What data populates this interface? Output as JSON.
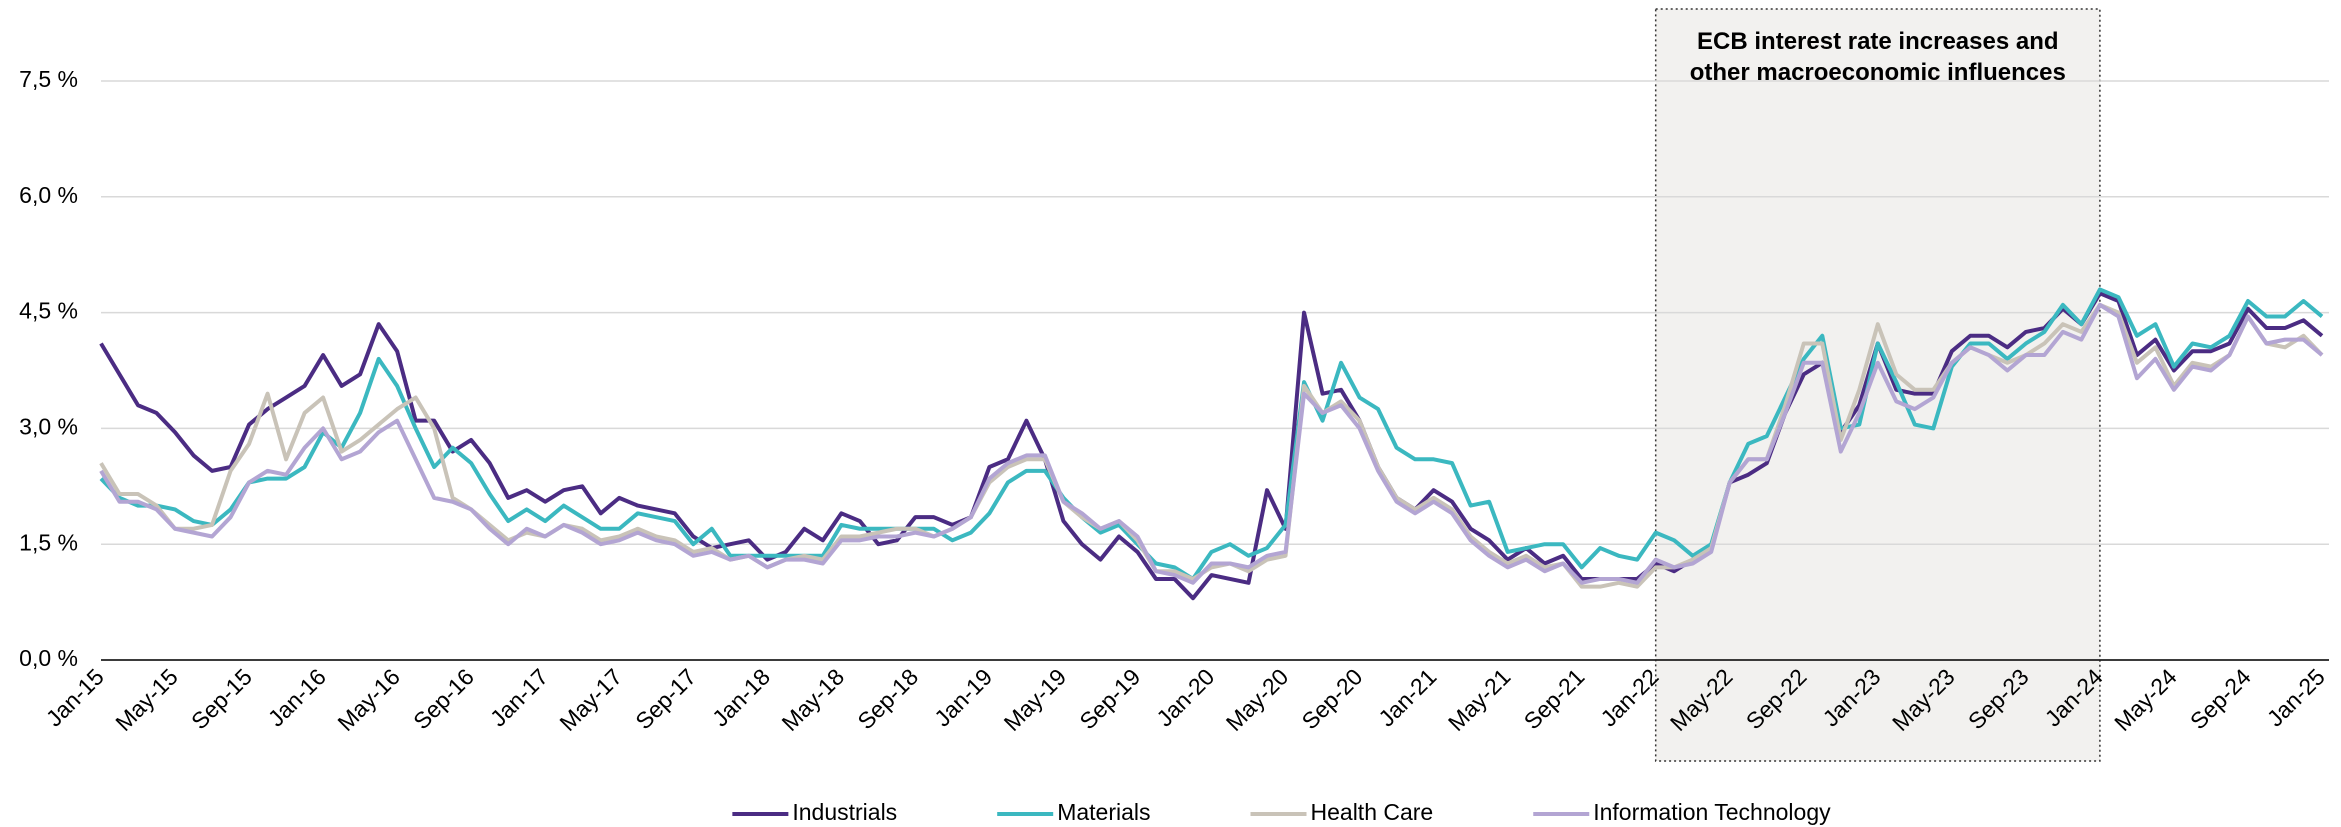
{
  "chart_data": {
    "type": "line",
    "categories": [
      "Jan-15",
      null,
      null,
      null,
      "May-15",
      null,
      null,
      null,
      "Sep-15",
      null,
      null,
      null,
      "Jan-16",
      null,
      null,
      null,
      "May-16",
      null,
      null,
      null,
      "Sep-16",
      null,
      null,
      null,
      "Jan-17",
      null,
      null,
      null,
      "May-17",
      null,
      null,
      null,
      "Sep-17",
      null,
      null,
      null,
      "Jan-18",
      null,
      null,
      null,
      "May-18",
      null,
      null,
      null,
      "Sep-18",
      null,
      null,
      null,
      "Jan-19",
      null,
      null,
      null,
      "May-19",
      null,
      null,
      null,
      "Sep-19",
      null,
      null,
      null,
      "Jan-20",
      null,
      null,
      null,
      "May-20",
      null,
      null,
      null,
      "Sep-20",
      null,
      null,
      null,
      "Jan-21",
      null,
      null,
      null,
      "May-21",
      null,
      null,
      null,
      "Sep-21",
      null,
      null,
      null,
      "Jan-22",
      null,
      null,
      null,
      "May-22",
      null,
      null,
      null,
      "Sep-22",
      null,
      null,
      null,
      "Jan-23",
      null,
      null,
      null,
      "May-23",
      null,
      null,
      null,
      "Sep-23",
      null,
      null,
      null,
      "Jan-24",
      null,
      null,
      null,
      "May-24",
      null,
      null,
      null,
      "Sep-24",
      null,
      null,
      null,
      "Jan-25"
    ],
    "series": [
      {
        "name": "Industrials",
        "color": "#4b2c83",
        "values": [
          4.1,
          3.7,
          3.3,
          3.2,
          2.95,
          2.65,
          2.45,
          2.5,
          3.05,
          3.25,
          3.4,
          3.55,
          3.95,
          3.55,
          3.7,
          4.35,
          4.0,
          3.1,
          3.1,
          2.7,
          2.85,
          2.55,
          2.1,
          2.2,
          2.05,
          2.2,
          2.25,
          1.9,
          2.1,
          2.0,
          1.95,
          1.9,
          1.6,
          1.45,
          1.5,
          1.55,
          1.3,
          1.4,
          1.7,
          1.55,
          1.9,
          1.8,
          1.5,
          1.55,
          1.85,
          1.85,
          1.75,
          1.85,
          2.5,
          2.6,
          3.1,
          2.6,
          1.8,
          1.5,
          1.3,
          1.6,
          1.4,
          1.05,
          1.05,
          0.8,
          1.1,
          1.05,
          1.0,
          2.2,
          1.7,
          4.5,
          3.45,
          3.5,
          3.1,
          2.5,
          2.1,
          1.95,
          2.2,
          2.05,
          1.7,
          1.55,
          1.3,
          1.45,
          1.25,
          1.35,
          1.05,
          1.05,
          1.05,
          1.05,
          1.25,
          1.15,
          1.3,
          1.45,
          2.3,
          2.4,
          2.55,
          3.2,
          3.7,
          3.85,
          2.95,
          3.3,
          4.1,
          3.5,
          3.45,
          3.45,
          4.0,
          4.2,
          4.2,
          4.05,
          4.25,
          4.3,
          4.55,
          4.35,
          4.75,
          4.65,
          3.95,
          4.15,
          3.75,
          4.0,
          4.0,
          4.1,
          4.55,
          4.3,
          4.3,
          4.4,
          4.2
        ]
      },
      {
        "name": "Materials",
        "color": "#3bb8c0",
        "values": [
          2.35,
          2.1,
          2.0,
          2.0,
          1.95,
          1.8,
          1.75,
          1.95,
          2.3,
          2.35,
          2.35,
          2.5,
          2.95,
          2.75,
          3.2,
          3.9,
          3.55,
          3.0,
          2.5,
          2.75,
          2.55,
          2.15,
          1.8,
          1.95,
          1.8,
          2.0,
          1.85,
          1.7,
          1.7,
          1.9,
          1.85,
          1.8,
          1.5,
          1.7,
          1.35,
          1.35,
          1.35,
          1.35,
          1.35,
          1.35,
          1.75,
          1.7,
          1.7,
          1.7,
          1.7,
          1.7,
          1.55,
          1.65,
          1.9,
          2.3,
          2.45,
          2.45,
          2.1,
          1.85,
          1.65,
          1.75,
          1.5,
          1.25,
          1.2,
          1.05,
          1.4,
          1.5,
          1.35,
          1.45,
          1.75,
          3.6,
          3.1,
          3.85,
          3.4,
          3.25,
          2.75,
          2.6,
          2.6,
          2.55,
          2.0,
          2.05,
          1.4,
          1.45,
          1.5,
          1.5,
          1.2,
          1.45,
          1.35,
          1.3,
          1.65,
          1.55,
          1.35,
          1.5,
          2.3,
          2.8,
          2.9,
          3.4,
          3.9,
          4.2,
          3.0,
          3.05,
          4.1,
          3.6,
          3.05,
          3.0,
          3.8,
          4.1,
          4.1,
          3.9,
          4.1,
          4.25,
          4.6,
          4.35,
          4.8,
          4.7,
          4.2,
          4.35,
          3.8,
          4.1,
          4.05,
          4.2,
          4.65,
          4.45,
          4.45,
          4.65,
          4.45
        ]
      },
      {
        "name": "Health Care",
        "color": "#c9c3b8",
        "values": [
          2.55,
          2.15,
          2.15,
          2.0,
          1.7,
          1.7,
          1.75,
          2.45,
          2.8,
          3.45,
          2.6,
          3.2,
          3.4,
          2.7,
          2.85,
          3.05,
          3.25,
          3.4,
          3.0,
          2.1,
          1.95,
          1.75,
          1.55,
          1.65,
          1.6,
          1.75,
          1.7,
          1.55,
          1.6,
          1.7,
          1.6,
          1.55,
          1.4,
          1.45,
          1.3,
          1.35,
          1.2,
          1.3,
          1.35,
          1.3,
          1.6,
          1.6,
          1.65,
          1.7,
          1.7,
          1.6,
          1.7,
          1.85,
          2.3,
          2.5,
          2.6,
          2.6,
          2.05,
          1.85,
          1.7,
          1.8,
          1.55,
          1.15,
          1.15,
          1.05,
          1.2,
          1.25,
          1.15,
          1.3,
          1.35,
          3.55,
          3.2,
          3.35,
          3.1,
          2.5,
          2.1,
          1.95,
          2.1,
          1.95,
          1.6,
          1.4,
          1.25,
          1.35,
          1.2,
          1.25,
          0.95,
          0.95,
          1.0,
          0.95,
          1.2,
          1.2,
          1.3,
          1.45,
          2.3,
          2.6,
          2.6,
          3.3,
          4.1,
          4.1,
          2.85,
          3.5,
          4.35,
          3.7,
          3.5,
          3.5,
          3.85,
          4.05,
          3.95,
          3.85,
          3.95,
          4.1,
          4.35,
          4.25,
          4.6,
          4.5,
          3.85,
          4.05,
          3.55,
          3.85,
          3.8,
          3.95,
          4.45,
          4.1,
          4.05,
          4.2,
          3.95
        ]
      },
      {
        "name": "Information Technology",
        "color": "#b3a5d3",
        "values": [
          2.45,
          2.05,
          2.05,
          1.95,
          1.7,
          1.65,
          1.6,
          1.85,
          2.3,
          2.45,
          2.4,
          2.75,
          3.0,
          2.6,
          2.7,
          2.95,
          3.1,
          2.6,
          2.1,
          2.05,
          1.95,
          1.7,
          1.5,
          1.7,
          1.6,
          1.75,
          1.65,
          1.5,
          1.55,
          1.65,
          1.55,
          1.5,
          1.35,
          1.4,
          1.3,
          1.35,
          1.2,
          1.3,
          1.3,
          1.25,
          1.55,
          1.55,
          1.6,
          1.6,
          1.65,
          1.6,
          1.7,
          1.85,
          2.35,
          2.55,
          2.65,
          2.65,
          2.05,
          1.9,
          1.7,
          1.8,
          1.6,
          1.15,
          1.1,
          1.0,
          1.25,
          1.25,
          1.2,
          1.35,
          1.4,
          3.45,
          3.2,
          3.3,
          3.0,
          2.45,
          2.05,
          1.9,
          2.05,
          1.9,
          1.55,
          1.35,
          1.2,
          1.3,
          1.15,
          1.25,
          1.0,
          1.05,
          1.05,
          1.0,
          1.3,
          1.2,
          1.25,
          1.4,
          2.3,
          2.6,
          2.6,
          3.2,
          3.85,
          3.85,
          2.7,
          3.2,
          3.85,
          3.35,
          3.25,
          3.4,
          3.85,
          4.05,
          3.95,
          3.75,
          3.95,
          3.95,
          4.25,
          4.15,
          4.6,
          4.45,
          3.65,
          3.9,
          3.5,
          3.8,
          3.75,
          3.95,
          4.45,
          4.1,
          4.15,
          4.15,
          3.95
        ]
      }
    ],
    "ylim": [
      0,
      7.5
    ],
    "yticks": [
      {
        "value": 0,
        "label": "0,0 %"
      },
      {
        "value": 1.5,
        "label": "1,5 %"
      },
      {
        "value": 3,
        "label": "3,0 %"
      },
      {
        "value": 4.5,
        "label": "4,5 %"
      },
      {
        "value": 6,
        "label": "6,0 %"
      },
      {
        "value": 7.5,
        "label": "7,5 %"
      }
    ],
    "grid": true,
    "legend": "bottom",
    "annotation": {
      "text": "ECB interest rate increases and other macroeconomic influences",
      "from": "Jan-22",
      "to": "Jan-24"
    }
  }
}
